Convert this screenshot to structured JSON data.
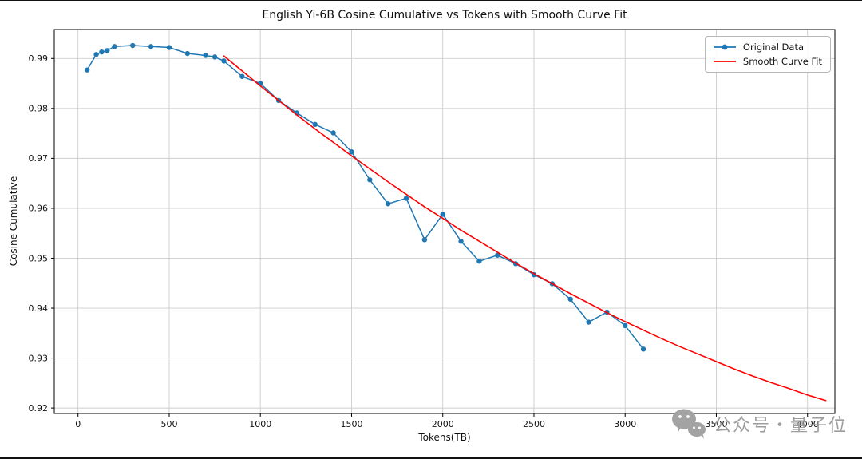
{
  "chart_data": {
    "type": "line",
    "title": "English Yi-6B Cosine Cumulative vs Tokens with Smooth Curve Fit",
    "xlabel": "Tokens(TB)",
    "ylabel": "Cosine Cumulative",
    "xlim": [
      -130,
      4150
    ],
    "ylim": [
      0.9189,
      0.9958
    ],
    "xticks": [
      0,
      500,
      1000,
      1500,
      2000,
      2500,
      3000,
      3500,
      4000
    ],
    "yticks": [
      0.92,
      0.93,
      0.94,
      0.95,
      0.96,
      0.97,
      0.98,
      0.99
    ],
    "grid": true,
    "legend_position": "upper right",
    "series": [
      {
        "name": "Original Data",
        "color": "#1f77b4",
        "marker": "circle",
        "line_width": 1.5,
        "x": [
          50,
          100,
          130,
          160,
          200,
          300,
          400,
          500,
          600,
          700,
          750,
          800,
          900,
          1000,
          1100,
          1200,
          1300,
          1400,
          1500,
          1600,
          1700,
          1800,
          1900,
          2000,
          2100,
          2200,
          2300,
          2400,
          2500,
          2600,
          2700,
          2800,
          2900,
          3000,
          3100
        ],
        "y": [
          0.9877,
          0.9908,
          0.9913,
          0.9916,
          0.9924,
          0.9926,
          0.9924,
          0.9922,
          0.991,
          0.9906,
          0.9903,
          0.9895,
          0.9864,
          0.985,
          0.9816,
          0.9791,
          0.9768,
          0.9751,
          0.9713,
          0.9657,
          0.9609,
          0.962,
          0.9537,
          0.9588,
          0.9534,
          0.9494,
          0.9506,
          0.9489,
          0.9467,
          0.9449,
          0.9418,
          0.9372,
          0.9392,
          0.9365,
          0.9318
        ]
      },
      {
        "name": "Smooth Curve Fit",
        "color": "#ff0000",
        "marker": "none",
        "line_width": 1.6,
        "x": [
          800,
          900,
          1000,
          1100,
          1200,
          1300,
          1400,
          1500,
          1600,
          1700,
          1800,
          1900,
          2000,
          2100,
          2200,
          2300,
          2400,
          2500,
          2600,
          2700,
          2800,
          2900,
          3000,
          3100,
          3200,
          3300,
          3400,
          3500,
          3600,
          3700,
          3800,
          3900,
          4000,
          4100
        ],
        "y": [
          0.9905,
          0.9875,
          0.9845,
          0.9816,
          0.9787,
          0.9759,
          0.9732,
          0.9705,
          0.9679,
          0.9653,
          0.9628,
          0.9603,
          0.958,
          0.9556,
          0.9534,
          0.9512,
          0.949,
          0.9469,
          0.9449,
          0.9429,
          0.941,
          0.9391,
          0.9373,
          0.9356,
          0.9339,
          0.9323,
          0.9308,
          0.9293,
          0.9278,
          0.9264,
          0.9251,
          0.9239,
          0.9226,
          0.9215
        ]
      }
    ]
  },
  "watermark": {
    "text": "公众号・量子位",
    "icon": "wechat-bubbles-icon",
    "color": "#9d9d9d"
  },
  "style_colors": {
    "grid": "#cdcdcd",
    "spine": "#000000",
    "text": "#111111"
  }
}
